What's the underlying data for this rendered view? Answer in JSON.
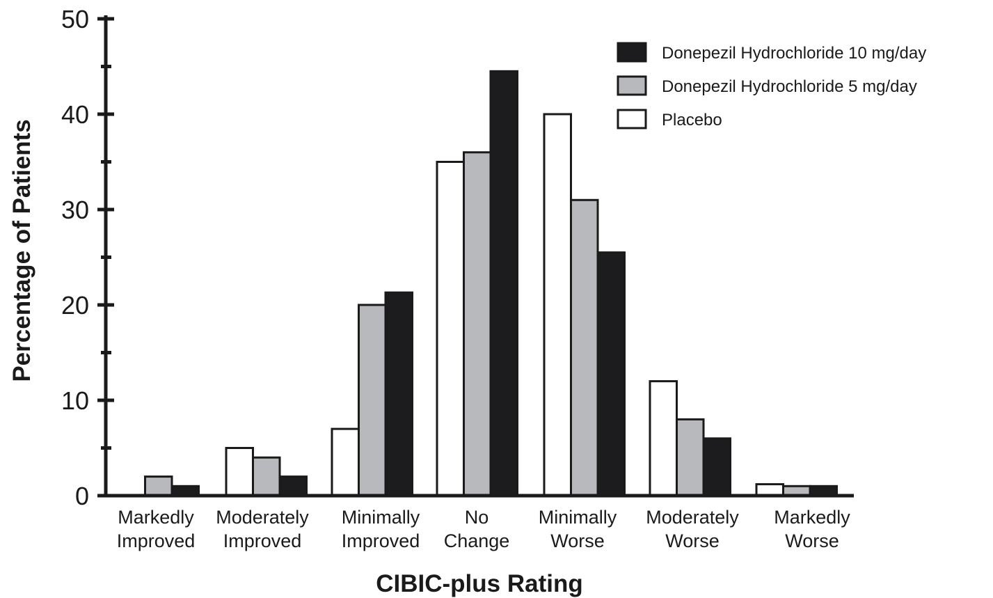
{
  "chart_data": {
    "type": "bar",
    "title": "",
    "xlabel": "CIBIC-plus Rating",
    "ylabel": "Percentage of Patients",
    "ylim": [
      0,
      50
    ],
    "yticks": [
      0,
      10,
      20,
      30,
      40,
      50
    ],
    "grid": false,
    "legend_position": "top-right",
    "categories": [
      [
        "Markedly",
        "Improved"
      ],
      [
        "Moderately",
        "Improved"
      ],
      [
        "Minimally",
        "Improved"
      ],
      [
        "No",
        "Change"
      ],
      [
        "Minimally",
        "Worse"
      ],
      [
        "Moderately",
        "Worse"
      ],
      [
        "Markedly",
        "Worse"
      ]
    ],
    "series": [
      {
        "name": "Placebo",
        "color": "#ffffff",
        "values": [
          0,
          5,
          7,
          35,
          40,
          12,
          1.2
        ]
      },
      {
        "name": "Donepezil Hydrochloride 5 mg/day",
        "color": "#b8b9bd",
        "values": [
          2,
          4,
          20,
          36,
          31,
          8,
          1
        ]
      },
      {
        "name": "Donepezil Hydrochloride 10 mg/day",
        "color": "#1c1b1d",
        "values": [
          1,
          2,
          21.3,
          44.5,
          25.5,
          6,
          1
        ]
      }
    ],
    "legend_order": [
      2,
      1,
      0
    ]
  }
}
